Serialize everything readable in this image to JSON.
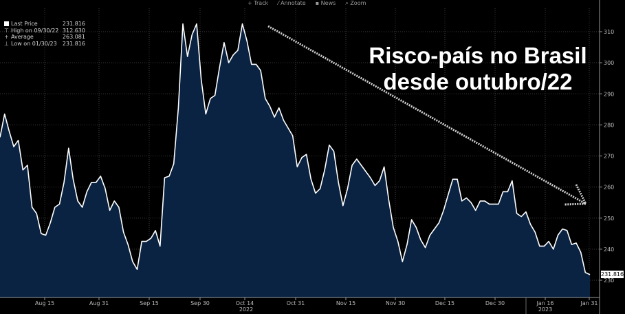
{
  "toolbar": {
    "track": "Track",
    "annotate": "Annotate",
    "news": "News",
    "zoom": "Zoom"
  },
  "legend": {
    "last_label": "Last Price",
    "last_value": "231.816",
    "high_label": "High on 09/30/22",
    "high_value": "312.630",
    "avg_label": "Average",
    "avg_value": "263.081",
    "low_label": "Low on 01/30/23",
    "low_value": "231.816"
  },
  "headline": {
    "line1": "Risco-país no Brasil",
    "line2": "desde outubro/22"
  },
  "last_price_tag": "231.816",
  "colors": {
    "background": "#000000",
    "area_fill": "#0a2342",
    "line": "#ffffff",
    "grid": "#4a4a4a",
    "arrow": "#d0d0d0"
  },
  "chart_data": {
    "type": "area",
    "title": "",
    "xlabel": "",
    "ylabel": "",
    "ylim": [
      225,
      318
    ],
    "y_ticks": [
      230,
      240,
      250,
      260,
      270,
      280,
      290,
      300,
      310
    ],
    "grid": true,
    "x_ticks": [
      "Aug 15",
      "Aug 31",
      "Sep 15",
      "Sep 30",
      "Oct 14",
      "Oct 31",
      "Nov 15",
      "Nov 30",
      "Dec 15",
      "Dec 30",
      "Jan 16",
      "Jan 31"
    ],
    "year_labels": [
      "2022",
      "2023"
    ],
    "series": [
      {
        "values": [
          276,
          283.5,
          278,
          273,
          275,
          265.5,
          267,
          253.5,
          251.5,
          245,
          244.5,
          248.5,
          253.5,
          254.5,
          261.5,
          272.5,
          262.5,
          255.5,
          253.5,
          258.5,
          261.5,
          261.5,
          263.5,
          259.5,
          252.5,
          255.5,
          253.5,
          245.5,
          241.5,
          236,
          233.5,
          242.5,
          242.5,
          243.5,
          246,
          241,
          263,
          263.5,
          267.5,
          285.5,
          312.5,
          302,
          309,
          312.5,
          294.5,
          283.5,
          288.5,
          289.5,
          298.5,
          306.5,
          300,
          302.5,
          304,
          312.5,
          307,
          299.5,
          299.5,
          297.5,
          288.5,
          286,
          282.5,
          285.5,
          281.5,
          279,
          276.5,
          266.5,
          269.5,
          270.5,
          262.5,
          258,
          259.5,
          265.5,
          273.5,
          271.5,
          261.5,
          254,
          259.5,
          267,
          269,
          267,
          265,
          263,
          260.5,
          262,
          266.5,
          256,
          247,
          242.5,
          236,
          241.5,
          249.5,
          247,
          243,
          240.5,
          244.5,
          246.5,
          248.5,
          252.5,
          257.5,
          262.5,
          262.5,
          255.5,
          256.5,
          255,
          252.5,
          255.5,
          255.5,
          254.5,
          254.5,
          254.5,
          258.5,
          258.5,
          262,
          251.5,
          250.5,
          252,
          248,
          245.5,
          241,
          241,
          242.5,
          240,
          244.5,
          246.5,
          246,
          241.5,
          242,
          239,
          232.5,
          231.8
        ]
      }
    ],
    "annotation": "downward trend arrow from early October 2022 to end of January 2023"
  }
}
